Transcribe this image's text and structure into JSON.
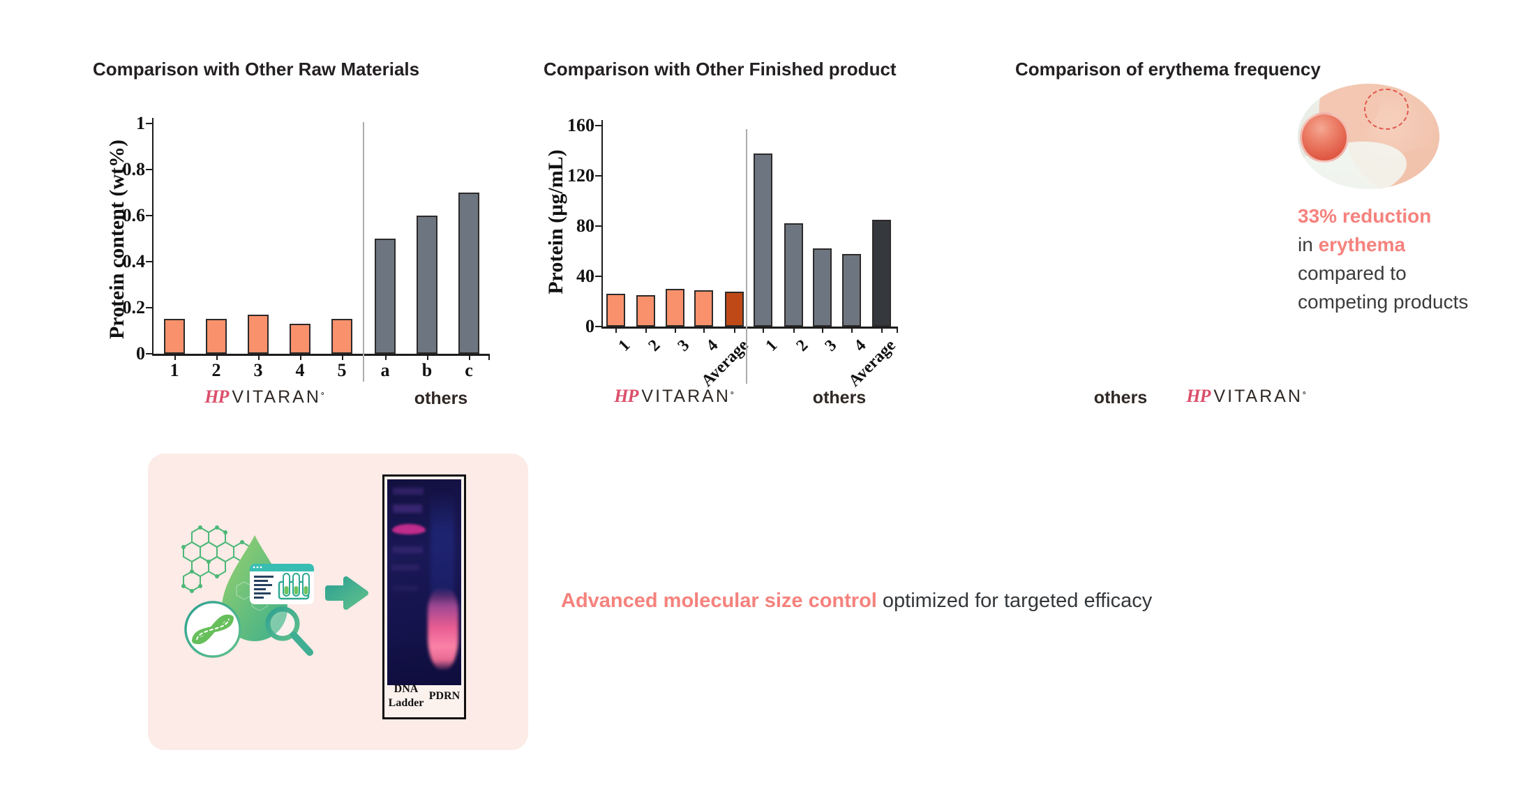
{
  "brand": {
    "script": "HP",
    "name": "VITARAN",
    "mark": "°",
    "others": "others"
  },
  "erythema": {
    "title": "Comparison of erythema frequency",
    "line1": "33% reduction",
    "line2_prefix": "in ",
    "line2_accent": "erythema",
    "line3": "compared to",
    "line4": "competing products"
  },
  "tagline": {
    "accent": "Advanced molecular size control",
    "rest": " optimized for targeted efficacy"
  },
  "gel": {
    "lane1_line1": "DNA",
    "lane1_line2": "Ladder",
    "lane2": "PDRN"
  },
  "colors": {
    "accent_salmon": "#F5827D",
    "bar_salmon": "#F8916C",
    "bar_salmon_dark": "#C04A17",
    "bar_gray": "#6D7580",
    "bar_gray_dark": "#35383D",
    "pink_box": "#FCEBE7",
    "logo_pink": "#DB4F6C"
  },
  "chart_data": [
    {
      "type": "bar",
      "title": "Comparison with Other Raw Materials",
      "xlabel": "",
      "ylabel": "Protein content (wt%)",
      "ylim": [
        0,
        1
      ],
      "yticks": [
        0,
        0.2,
        0.4,
        0.6,
        0.8,
        1
      ],
      "ytick_labels": [
        "0",
        "0.2",
        "0.4",
        "0.6",
        "0.8",
        "1"
      ],
      "grid": false,
      "rotated_xticks": false,
      "groups": [
        {
          "name": "VITARAN",
          "categories": [
            "1",
            "2",
            "3",
            "4",
            "5"
          ],
          "values": [
            0.15,
            0.15,
            0.17,
            0.13,
            0.15
          ],
          "bar_color": "#F8916C"
        },
        {
          "name": "others",
          "categories": [
            "a",
            "b",
            "c"
          ],
          "values": [
            0.5,
            0.6,
            0.7
          ],
          "bar_color": "#6D7580"
        }
      ]
    },
    {
      "type": "bar",
      "title": "Comparison with Other Finished product",
      "xlabel": "",
      "ylabel": "Protein (µg/mL)",
      "ylim": [
        0,
        160
      ],
      "yticks": [
        0,
        40,
        80,
        120,
        160
      ],
      "ytick_labels": [
        "0",
        "40",
        "80",
        "120",
        "160"
      ],
      "grid": false,
      "rotated_xticks": true,
      "groups": [
        {
          "name": "VITARAN",
          "categories": [
            "1",
            "2",
            "3",
            "4",
            "Average"
          ],
          "values": [
            26,
            25,
            30,
            29,
            28
          ],
          "bar_color": "#F8916C",
          "highlight_last": "#C04A17"
        },
        {
          "name": "others",
          "categories": [
            "1",
            "2",
            "3",
            "4",
            "Average"
          ],
          "values": [
            138,
            82,
            62,
            58,
            85
          ],
          "bar_color": "#6D7580",
          "highlight_last": "#35383D"
        }
      ]
    }
  ]
}
